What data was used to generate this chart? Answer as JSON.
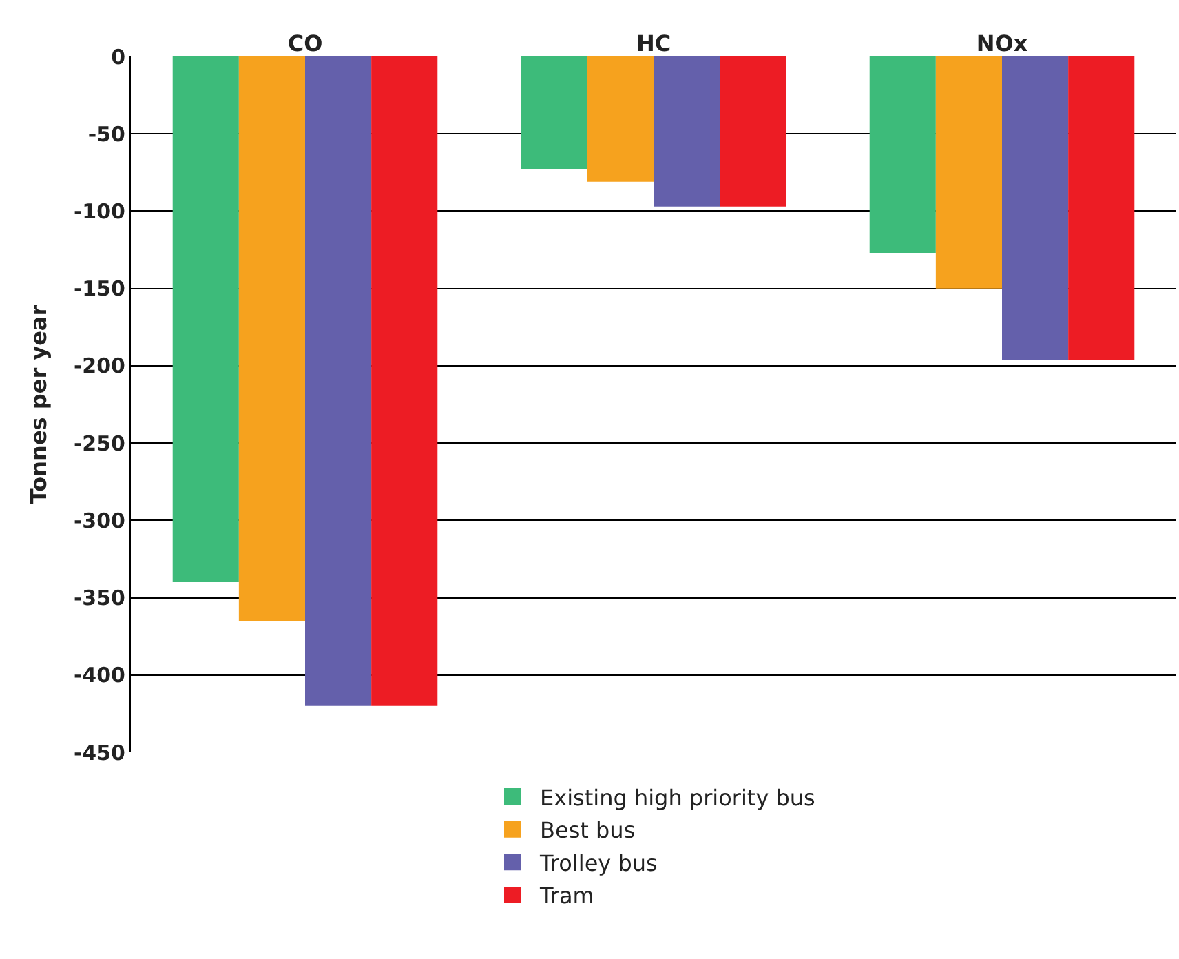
{
  "chart_data": {
    "type": "bar",
    "ylabel": "Tonnes per year",
    "categories": [
      "CO",
      "HC",
      "NOx"
    ],
    "series": [
      {
        "name": "Existing high priority bus",
        "color": "#3dbb7a",
        "values": [
          -340,
          -73,
          -127
        ]
      },
      {
        "name": "Best bus",
        "color": "#f6a21e",
        "values": [
          -365,
          -81,
          -150
        ]
      },
      {
        "name": "Trolley bus",
        "color": "#6460ab",
        "values": [
          -420,
          -97,
          -196
        ]
      },
      {
        "name": "Tram",
        "color": "#ed1c24",
        "values": [
          -420,
          -97,
          -196
        ]
      }
    ],
    "ylim": [
      -450,
      0
    ],
    "yticks": [
      0,
      -50,
      -100,
      -150,
      -200,
      -250,
      -300,
      -350,
      -400,
      -450
    ],
    "grid": "y",
    "legend": "bottom"
  }
}
